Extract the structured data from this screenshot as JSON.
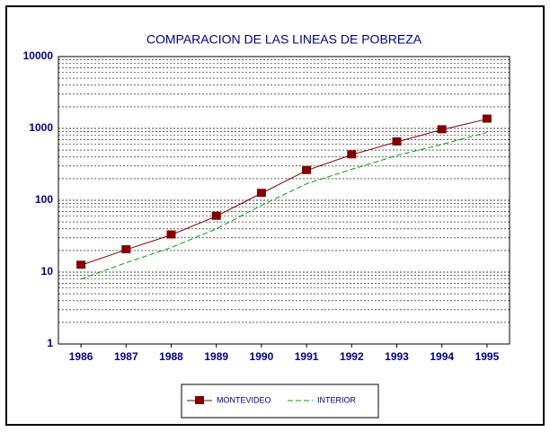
{
  "chart_data": {
    "type": "line",
    "title": "COMPARACION DE LAS LINEAS DE POBREZA",
    "categories": [
      "1986",
      "1987",
      "1988",
      "1989",
      "1990",
      "1991",
      "1992",
      "1993",
      "1994",
      "1995"
    ],
    "series": [
      {
        "name": "MONTEVIDEO",
        "color": "#800000",
        "values": [
          12.5,
          20.5,
          33,
          60,
          125,
          260,
          430,
          650,
          960,
          1350
        ]
      },
      {
        "name": "INTERIOR",
        "color": "#00a000",
        "values": [
          8,
          13.5,
          22,
          40,
          85,
          170,
          270,
          420,
          600,
          880
        ]
      }
    ],
    "ylim": [
      1,
      10000
    ],
    "yticks": [
      1,
      10,
      100,
      1000,
      10000
    ],
    "log": true,
    "grid": true,
    "legend": "bottom"
  }
}
